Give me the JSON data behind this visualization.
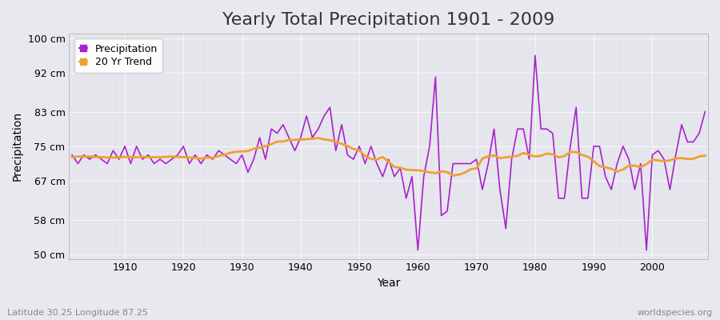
{
  "title": "Yearly Total Precipitation 1901 - 2009",
  "xlabel": "Year",
  "ylabel": "Precipitation",
  "bottom_left_text": "Latitude 30.25 Longitude 87.25",
  "bottom_right_text": "worldspecies.org",
  "ylim": [
    49,
    101
  ],
  "yticks": [
    50,
    58,
    67,
    75,
    83,
    92,
    100
  ],
  "ytick_labels": [
    "50 cm",
    "58 cm",
    "67 cm",
    "75 cm",
    "83 cm",
    "92 cm",
    "100 cm"
  ],
  "years": [
    1901,
    1902,
    1903,
    1904,
    1905,
    1906,
    1907,
    1908,
    1909,
    1910,
    1911,
    1912,
    1913,
    1914,
    1915,
    1916,
    1917,
    1918,
    1919,
    1920,
    1921,
    1922,
    1923,
    1924,
    1925,
    1926,
    1927,
    1928,
    1929,
    1930,
    1931,
    1932,
    1933,
    1934,
    1935,
    1936,
    1937,
    1938,
    1939,
    1940,
    1941,
    1942,
    1943,
    1944,
    1945,
    1946,
    1947,
    1948,
    1949,
    1950,
    1951,
    1952,
    1953,
    1954,
    1955,
    1956,
    1957,
    1958,
    1959,
    1960,
    1961,
    1962,
    1963,
    1964,
    1965,
    1966,
    1967,
    1968,
    1969,
    1970,
    1971,
    1972,
    1973,
    1974,
    1975,
    1976,
    1977,
    1978,
    1979,
    1980,
    1981,
    1982,
    1983,
    1984,
    1985,
    1986,
    1987,
    1988,
    1989,
    1990,
    1991,
    1992,
    1993,
    1994,
    1995,
    1996,
    1997,
    1998,
    1999,
    2000,
    2001,
    2002,
    2003,
    2004,
    2005,
    2006,
    2007,
    2008,
    2009
  ],
  "precipitation": [
    73,
    71,
    73,
    72,
    73,
    72,
    71,
    74,
    72,
    75,
    71,
    75,
    72,
    73,
    71,
    72,
    71,
    72,
    73,
    75,
    71,
    73,
    71,
    73,
    72,
    74,
    73,
    72,
    71,
    73,
    69,
    72,
    77,
    72,
    79,
    78,
    80,
    77,
    74,
    77,
    82,
    77,
    79,
    82,
    84,
    74,
    80,
    73,
    72,
    75,
    71,
    75,
    71,
    68,
    72,
    68,
    70,
    63,
    68,
    51,
    68,
    75,
    91,
    59,
    60,
    71,
    71,
    71,
    71,
    72,
    65,
    71,
    79,
    65,
    56,
    72,
    79,
    79,
    72,
    96,
    79,
    79,
    78,
    63,
    63,
    75,
    84,
    63,
    63,
    75,
    75,
    68,
    65,
    71,
    75,
    72,
    65,
    71,
    51,
    73,
    74,
    72,
    65,
    73,
    80,
    76,
    76,
    78,
    83
  ],
  "precip_color": "#aa22cc",
  "trend_color": "#f0a030",
  "bg_color": "#e8e8ee",
  "plot_bg_color": "#e4e4ec",
  "grid_color_major": "#ccccdd",
  "grid_color_minor": "#ddddee",
  "title_fontsize": 16,
  "axis_fontsize": 9,
  "legend_fontsize": 9,
  "trend_window": 20
}
